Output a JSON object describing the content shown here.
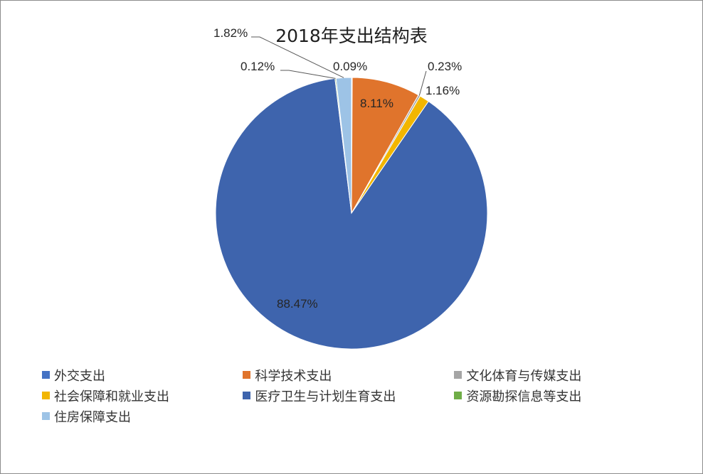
{
  "chart_data": {
    "type": "pie",
    "title": "2018年支出结构表",
    "slices": [
      {
        "label": "外交支出",
        "value": 0.09,
        "display": "0.09%",
        "color": "#4472c4"
      },
      {
        "label": "科学技术支出",
        "value": 8.11,
        "display": "8.11%",
        "color": "#e0742c"
      },
      {
        "label": "文化体育与传媒支出",
        "value": 0.23,
        "display": "0.23%",
        "color": "#a5a5a5"
      },
      {
        "label": "社会保障和就业支出",
        "value": 1.16,
        "display": "1.16%",
        "color": "#f2b600"
      },
      {
        "label": "医疗卫生与计划生育支出",
        "value": 88.47,
        "display": "88.47%",
        "color": "#3e64ad"
      },
      {
        "label": "资源勘探信息等支出",
        "value": 0.12,
        "display": "0.12%",
        "color": "#6fad47"
      },
      {
        "label": "住房保障支出",
        "value": 1.82,
        "display": "1.82%",
        "color": "#9dc3e6"
      }
    ],
    "legend_position": "bottom"
  }
}
